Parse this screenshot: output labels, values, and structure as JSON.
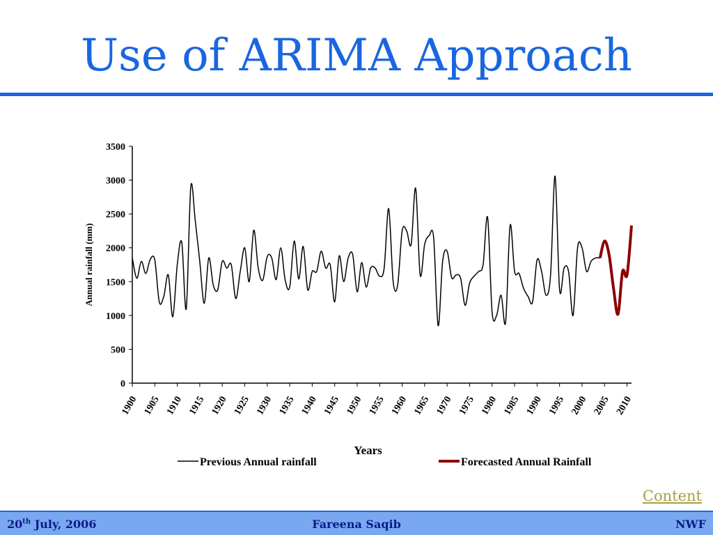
{
  "slide": {
    "title": "Use of ARIMA Approach",
    "content_link": "Content"
  },
  "footer": {
    "date_day": "20",
    "date_suffix": "th",
    "date_rest": " July, 2006",
    "author": "Fareena Saqib",
    "org": "NWF"
  },
  "colors": {
    "accent": "#1a66e0",
    "previous_series": "#000000",
    "forecast_series": "#8b0000",
    "footer_bg": "#7aa8f0"
  },
  "chart_data": {
    "type": "line",
    "title": "",
    "xlabel": "Years",
    "ylabel": "Annual rainfall (mm)",
    "xlim": [
      1900,
      2011
    ],
    "ylim": [
      0,
      3500
    ],
    "yticks": [
      0,
      500,
      1000,
      1500,
      2000,
      2500,
      3000,
      3500
    ],
    "xticks": [
      1900,
      1905,
      1910,
      1915,
      1920,
      1925,
      1930,
      1935,
      1940,
      1945,
      1950,
      1955,
      1960,
      1965,
      1970,
      1975,
      1980,
      1985,
      1990,
      1995,
      2000,
      2005,
      2010
    ],
    "legend_position": "bottom",
    "series": [
      {
        "name": "Previous Annual rainfall",
        "x": [
          1900,
          1901,
          1902,
          1903,
          1904,
          1905,
          1906,
          1907,
          1908,
          1909,
          1910,
          1911,
          1912,
          1913,
          1914,
          1915,
          1916,
          1917,
          1918,
          1919,
          1920,
          1921,
          1922,
          1923,
          1924,
          1925,
          1926,
          1927,
          1928,
          1929,
          1930,
          1931,
          1932,
          1933,
          1934,
          1935,
          1936,
          1937,
          1938,
          1939,
          1940,
          1941,
          1942,
          1943,
          1944,
          1945,
          1946,
          1947,
          1948,
          1949,
          1950,
          1951,
          1952,
          1953,
          1954,
          1955,
          1956,
          1957,
          1958,
          1959,
          1960,
          1961,
          1962,
          1963,
          1964,
          1965,
          1966,
          1967,
          1968,
          1969,
          1970,
          1971,
          1972,
          1973,
          1974,
          1975,
          1976,
          1977,
          1978,
          1979,
          1980,
          1981,
          1982,
          1983,
          1984,
          1985,
          1986,
          1987,
          1988,
          1989,
          1990,
          1991,
          1992,
          1993,
          1994,
          1995,
          1996,
          1997,
          1998,
          1999,
          2000,
          2001,
          2002,
          2003,
          2004
        ],
        "values": [
          1850,
          1550,
          1800,
          1620,
          1830,
          1820,
          1200,
          1280,
          1600,
          980,
          1750,
          2080,
          1100,
          2900,
          2400,
          1800,
          1180,
          1850,
          1450,
          1380,
          1800,
          1700,
          1750,
          1250,
          1650,
          2000,
          1500,
          2260,
          1700,
          1520,
          1870,
          1850,
          1530,
          2000,
          1520,
          1420,
          2100,
          1540,
          2020,
          1380,
          1650,
          1650,
          1950,
          1700,
          1750,
          1200,
          1880,
          1500,
          1850,
          1900,
          1350,
          1780,
          1420,
          1700,
          1700,
          1580,
          1700,
          2580,
          1500,
          1450,
          2250,
          2250,
          2050,
          2880,
          1600,
          2050,
          2180,
          2150,
          850,
          1800,
          1950,
          1560,
          1600,
          1550,
          1150,
          1480,
          1580,
          1650,
          1750,
          2450,
          1050,
          1000,
          1300,
          900,
          2330,
          1650,
          1620,
          1400,
          1280,
          1200,
          1820,
          1650,
          1300,
          1600,
          3060,
          1380,
          1700,
          1650,
          1000,
          2000,
          2000,
          1650,
          1800,
          1850,
          1850
        ]
      },
      {
        "name": "Forecasted Annual Rainfall",
        "x": [
          2004,
          2005,
          2006,
          2007,
          2008,
          2009,
          2010,
          2011
        ],
        "values": [
          1850,
          2100,
          1900,
          1400,
          1020,
          1650,
          1600,
          2330
        ]
      }
    ]
  }
}
